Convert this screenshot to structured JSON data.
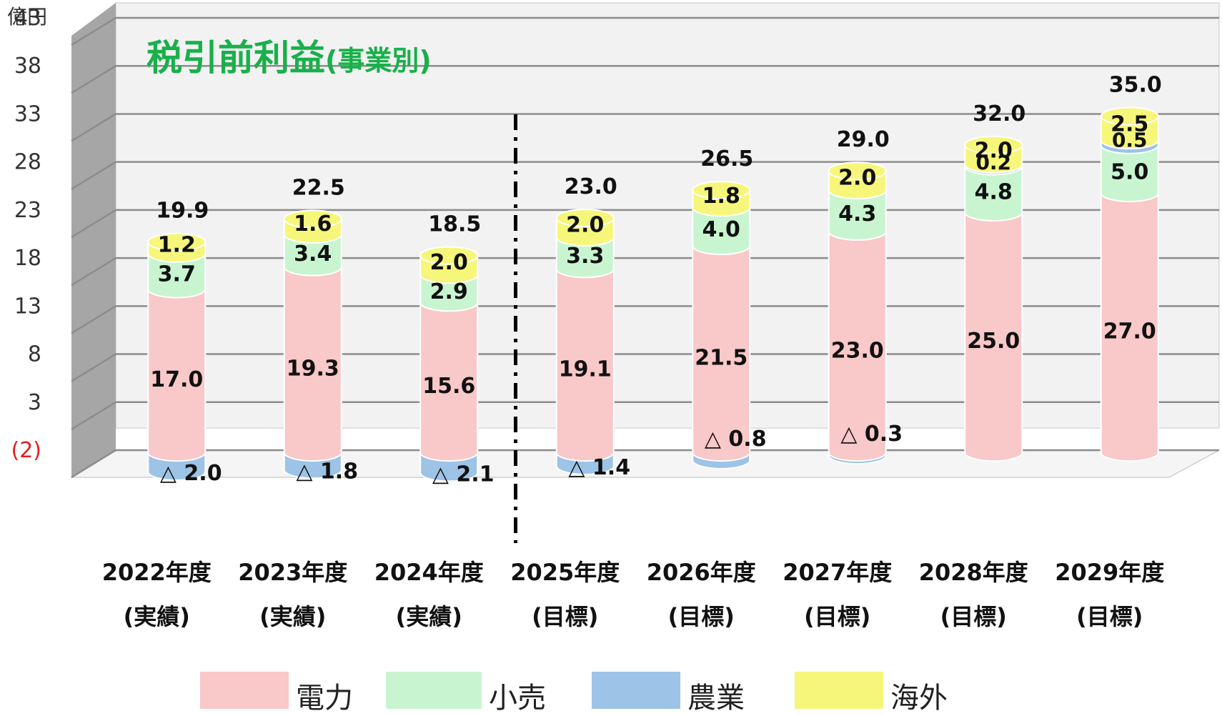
{
  "unit_label": "億円",
  "chart_data": {
    "type": "bar",
    "stacked": true,
    "title": "税引前利益",
    "subtitle": "(事業別)",
    "ylabel": "億円",
    "y_ticks": [
      "43",
      "38",
      "33",
      "28",
      "23",
      "18",
      "13",
      "8",
      "3",
      "(2)"
    ],
    "y_tick_values": [
      43,
      38,
      33,
      28,
      23,
      18,
      13,
      8,
      3,
      -2
    ],
    "ylim": [
      -2,
      43
    ],
    "grid": true,
    "legend_position": "bottom",
    "categories": [
      "2022年度",
      "2023年度",
      "2024年度",
      "2025年度",
      "2026年度",
      "2027年度",
      "2028年度",
      "2029年度"
    ],
    "category_sub": [
      "(実績)",
      "(実績)",
      "(実績)",
      "(目標)",
      "(目標)",
      "(目標)",
      "(目標)",
      "(目標)"
    ],
    "divider_after_index": 2,
    "series": [
      {
        "name": "電力",
        "color": "#F9C8C8",
        "values": [
          17.0,
          19.3,
          15.6,
          19.1,
          21.5,
          23.0,
          25.0,
          27.0
        ],
        "labels": [
          "17.0",
          "19.3",
          "15.6",
          "19.1",
          "21.5",
          "23.0",
          "25.0",
          "27.0"
        ]
      },
      {
        "name": "小売",
        "color": "#C8F5D0",
        "values": [
          3.7,
          3.4,
          2.9,
          3.3,
          4.0,
          4.3,
          4.8,
          5.0
        ],
        "labels": [
          "3.7",
          "3.4",
          "2.9",
          "3.3",
          "4.0",
          "4.3",
          "4.8",
          "5.0"
        ]
      },
      {
        "name": "農業",
        "color": "#9DC3E6",
        "values": [
          -2.0,
          -1.8,
          -2.1,
          -1.4,
          -0.8,
          -0.3,
          0.2,
          0.5
        ],
        "labels": [
          "△ 2.0",
          "△ 1.8",
          "△ 2.1",
          "△ 1.4",
          "△ 0.8",
          "△ 0.3",
          "0.2",
          "0.5"
        ]
      },
      {
        "name": "海外",
        "color": "#F6F67A",
        "values": [
          1.2,
          1.6,
          2.0,
          2.0,
          1.8,
          2.0,
          2.0,
          2.5
        ],
        "labels": [
          "1.2",
          "1.6",
          "2.0",
          "2.0",
          "1.8",
          "2.0",
          "2.0",
          "2.5"
        ]
      }
    ],
    "totals": [
      19.9,
      22.5,
      18.5,
      23.0,
      26.5,
      29.0,
      32.0,
      35.0
    ],
    "total_labels": [
      "19.9",
      "22.5",
      "18.5",
      "23.0",
      "26.5",
      "29.0",
      "32.0",
      "35.0"
    ]
  }
}
